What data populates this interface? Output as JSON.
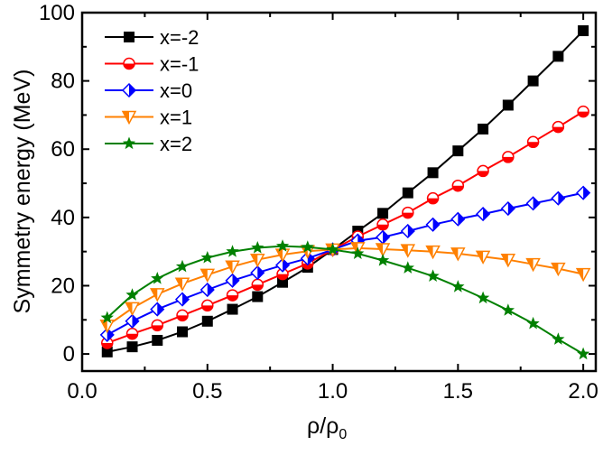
{
  "chart_data": {
    "type": "line",
    "title": "",
    "xlabel": "ρ/ρ",
    "xlabel_sub": "0",
    "ylabel": "Symmetry energy (MeV)",
    "xlim": [
      0,
      2.05
    ],
    "ylim": [
      -5,
      100
    ],
    "xticks": [
      "0.0",
      "0.5",
      "1.0",
      "1.5",
      "2.0"
    ],
    "yticks": [
      "0",
      "20",
      "40",
      "60",
      "80",
      "100"
    ],
    "grid": false,
    "legend_position": "top-left",
    "x": [
      0.1,
      0.2,
      0.3,
      0.4,
      0.5,
      0.6,
      0.7,
      0.8,
      0.9,
      1.0,
      1.1,
      1.2,
      1.3,
      1.4,
      1.5,
      1.6,
      1.7,
      1.8,
      1.9,
      2.0
    ],
    "series": [
      {
        "name": "x=-2",
        "color": "#000000",
        "marker": "filled-square",
        "values": [
          0.6,
          2.1,
          4.0,
          6.5,
          9.6,
          13.1,
          16.8,
          21.0,
          25.4,
          30.6,
          36.0,
          41.2,
          47.2,
          53.1,
          59.5,
          65.9,
          72.9,
          80.0,
          87.2,
          94.7
        ]
      },
      {
        "name": "x=-1",
        "color": "#ff0000",
        "marker": "half-filled-circle",
        "values": [
          3.2,
          5.9,
          8.4,
          11.3,
          14.2,
          17.2,
          20.3,
          23.4,
          26.5,
          30.6,
          34.4,
          37.9,
          41.4,
          45.6,
          49.3,
          53.6,
          57.7,
          62.1,
          66.5,
          71.0
        ]
      },
      {
        "name": "x=0",
        "color": "#0000ff",
        "marker": "half-filled-diamond",
        "values": [
          5.6,
          9.6,
          13.1,
          16.0,
          18.8,
          21.5,
          23.8,
          26.0,
          28.0,
          30.6,
          33.2,
          34.2,
          36.0,
          37.9,
          39.5,
          41.0,
          42.6,
          44.1,
          45.6,
          47.2
        ]
      },
      {
        "name": "x=1",
        "color": "#ff8000",
        "marker": "half-filled-down-triangle",
        "values": [
          8.3,
          13.4,
          17.5,
          20.6,
          23.2,
          25.6,
          27.6,
          29.1,
          30.1,
          30.6,
          31.0,
          30.7,
          30.4,
          30.0,
          29.4,
          28.5,
          27.6,
          26.3,
          25.0,
          23.4
        ]
      },
      {
        "name": "x=2",
        "color": "#008000",
        "marker": "filled-star",
        "values": [
          10.6,
          17.3,
          22.1,
          25.6,
          28.2,
          30.0,
          31.1,
          31.6,
          31.3,
          30.6,
          29.4,
          27.4,
          25.2,
          22.8,
          19.7,
          16.4,
          12.8,
          8.9,
          4.3,
          0.0
        ]
      }
    ]
  }
}
